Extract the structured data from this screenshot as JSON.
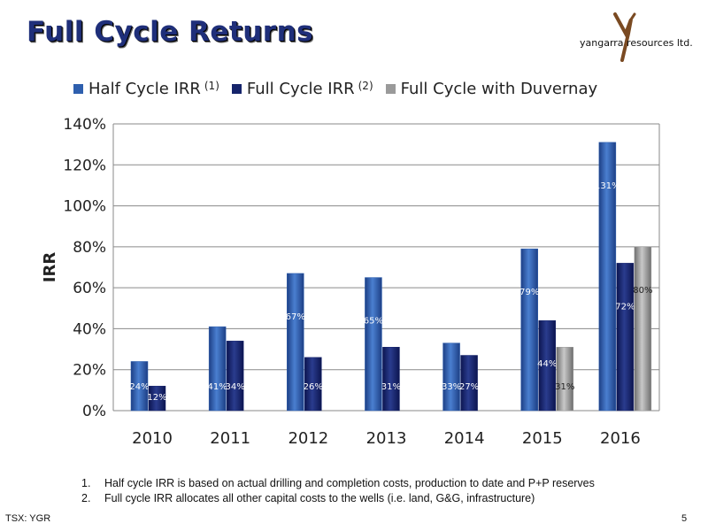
{
  "slide": {
    "title": "Full Cycle Returns",
    "logo_text": "yangarra resources ltd.",
    "footnotes": [
      {
        "num": "1.",
        "text": "Half cycle IRR is based on actual drilling and completion costs, production to date and P+P reserves"
      },
      {
        "num": "2.",
        "text": "Full cycle IRR allocates all other capital costs to the wells (i.e. land, G&G, infrastructure)"
      }
    ],
    "ticker": "TSX: YGR",
    "page_number": "5"
  },
  "legend": [
    {
      "label": "Half Cycle IRR",
      "sup": "(1)",
      "color": "#2e5fae"
    },
    {
      "label": "Full Cycle IRR",
      "sup": "(2)",
      "color": "#16246b"
    },
    {
      "label": "Full Cycle with Duvernay",
      "sup": "",
      "color": "#9a9a9a"
    }
  ],
  "chart_data": {
    "type": "bar",
    "categories": [
      "2010",
      "2011",
      "2012",
      "2013",
      "2014",
      "2015",
      "2016"
    ],
    "series": [
      {
        "name": "Half Cycle IRR (1)",
        "values": [
          24,
          41,
          67,
          65,
          33,
          79,
          131
        ],
        "labels": [
          "24%",
          "41%",
          "67%",
          "65%",
          "33%",
          "79%",
          "131%"
        ],
        "color": "#2e5fae"
      },
      {
        "name": "Full Cycle IRR (2)",
        "values": [
          12,
          34,
          26,
          31,
          27,
          44,
          72
        ],
        "labels": [
          "12%",
          "34%",
          "26%",
          "31%",
          "27%",
          "44%",
          "72%"
        ],
        "color": "#16246b"
      },
      {
        "name": "Full Cycle with Duvernay",
        "values": [
          null,
          null,
          null,
          null,
          null,
          31,
          80
        ],
        "labels": [
          null,
          null,
          null,
          null,
          null,
          "31%",
          "80%"
        ],
        "color": "#9a9a9a"
      }
    ],
    "ylabel": "IRR",
    "ylim": [
      0,
      140
    ],
    "yticks": [
      "0%",
      "20%",
      "40%",
      "60%",
      "80%",
      "100%",
      "120%",
      "140%"
    ],
    "grid": true,
    "legend_position": "top"
  }
}
